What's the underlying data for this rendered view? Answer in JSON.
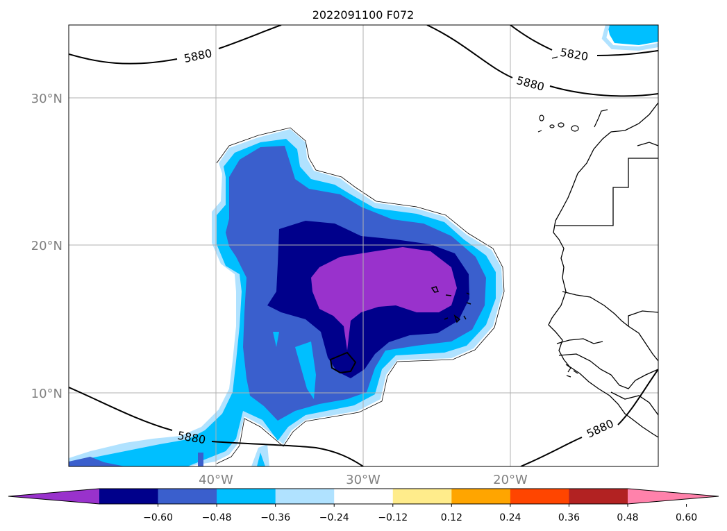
{
  "title": "2022091100 F072",
  "lat_labels": [
    "30°N",
    "20°N",
    "10°N"
  ],
  "lon_labels": [
    "40°W",
    "30°W",
    "20°W"
  ],
  "contour_labels": [
    "5880",
    "5820",
    "5880",
    "5880",
    "5880"
  ],
  "colorbar": {
    "tick_labels": [
      "−0.60",
      "−0.48",
      "−0.36",
      "−0.24",
      "−0.12",
      "0.12",
      "0.24",
      "0.36",
      "0.48",
      "0.60"
    ],
    "colors": [
      "#9932CC",
      "#00008B",
      "#3A5FCD",
      "#00BFFF",
      "#B0E2FF",
      "#FFFFFF",
      "#FFEC8B",
      "#FFA500",
      "#FF4500",
      "#B22222",
      "#FF82AB"
    ]
  },
  "colors": {
    "grid": "#b0b0b0",
    "tick_label": "#808080",
    "line": "#000000"
  }
}
